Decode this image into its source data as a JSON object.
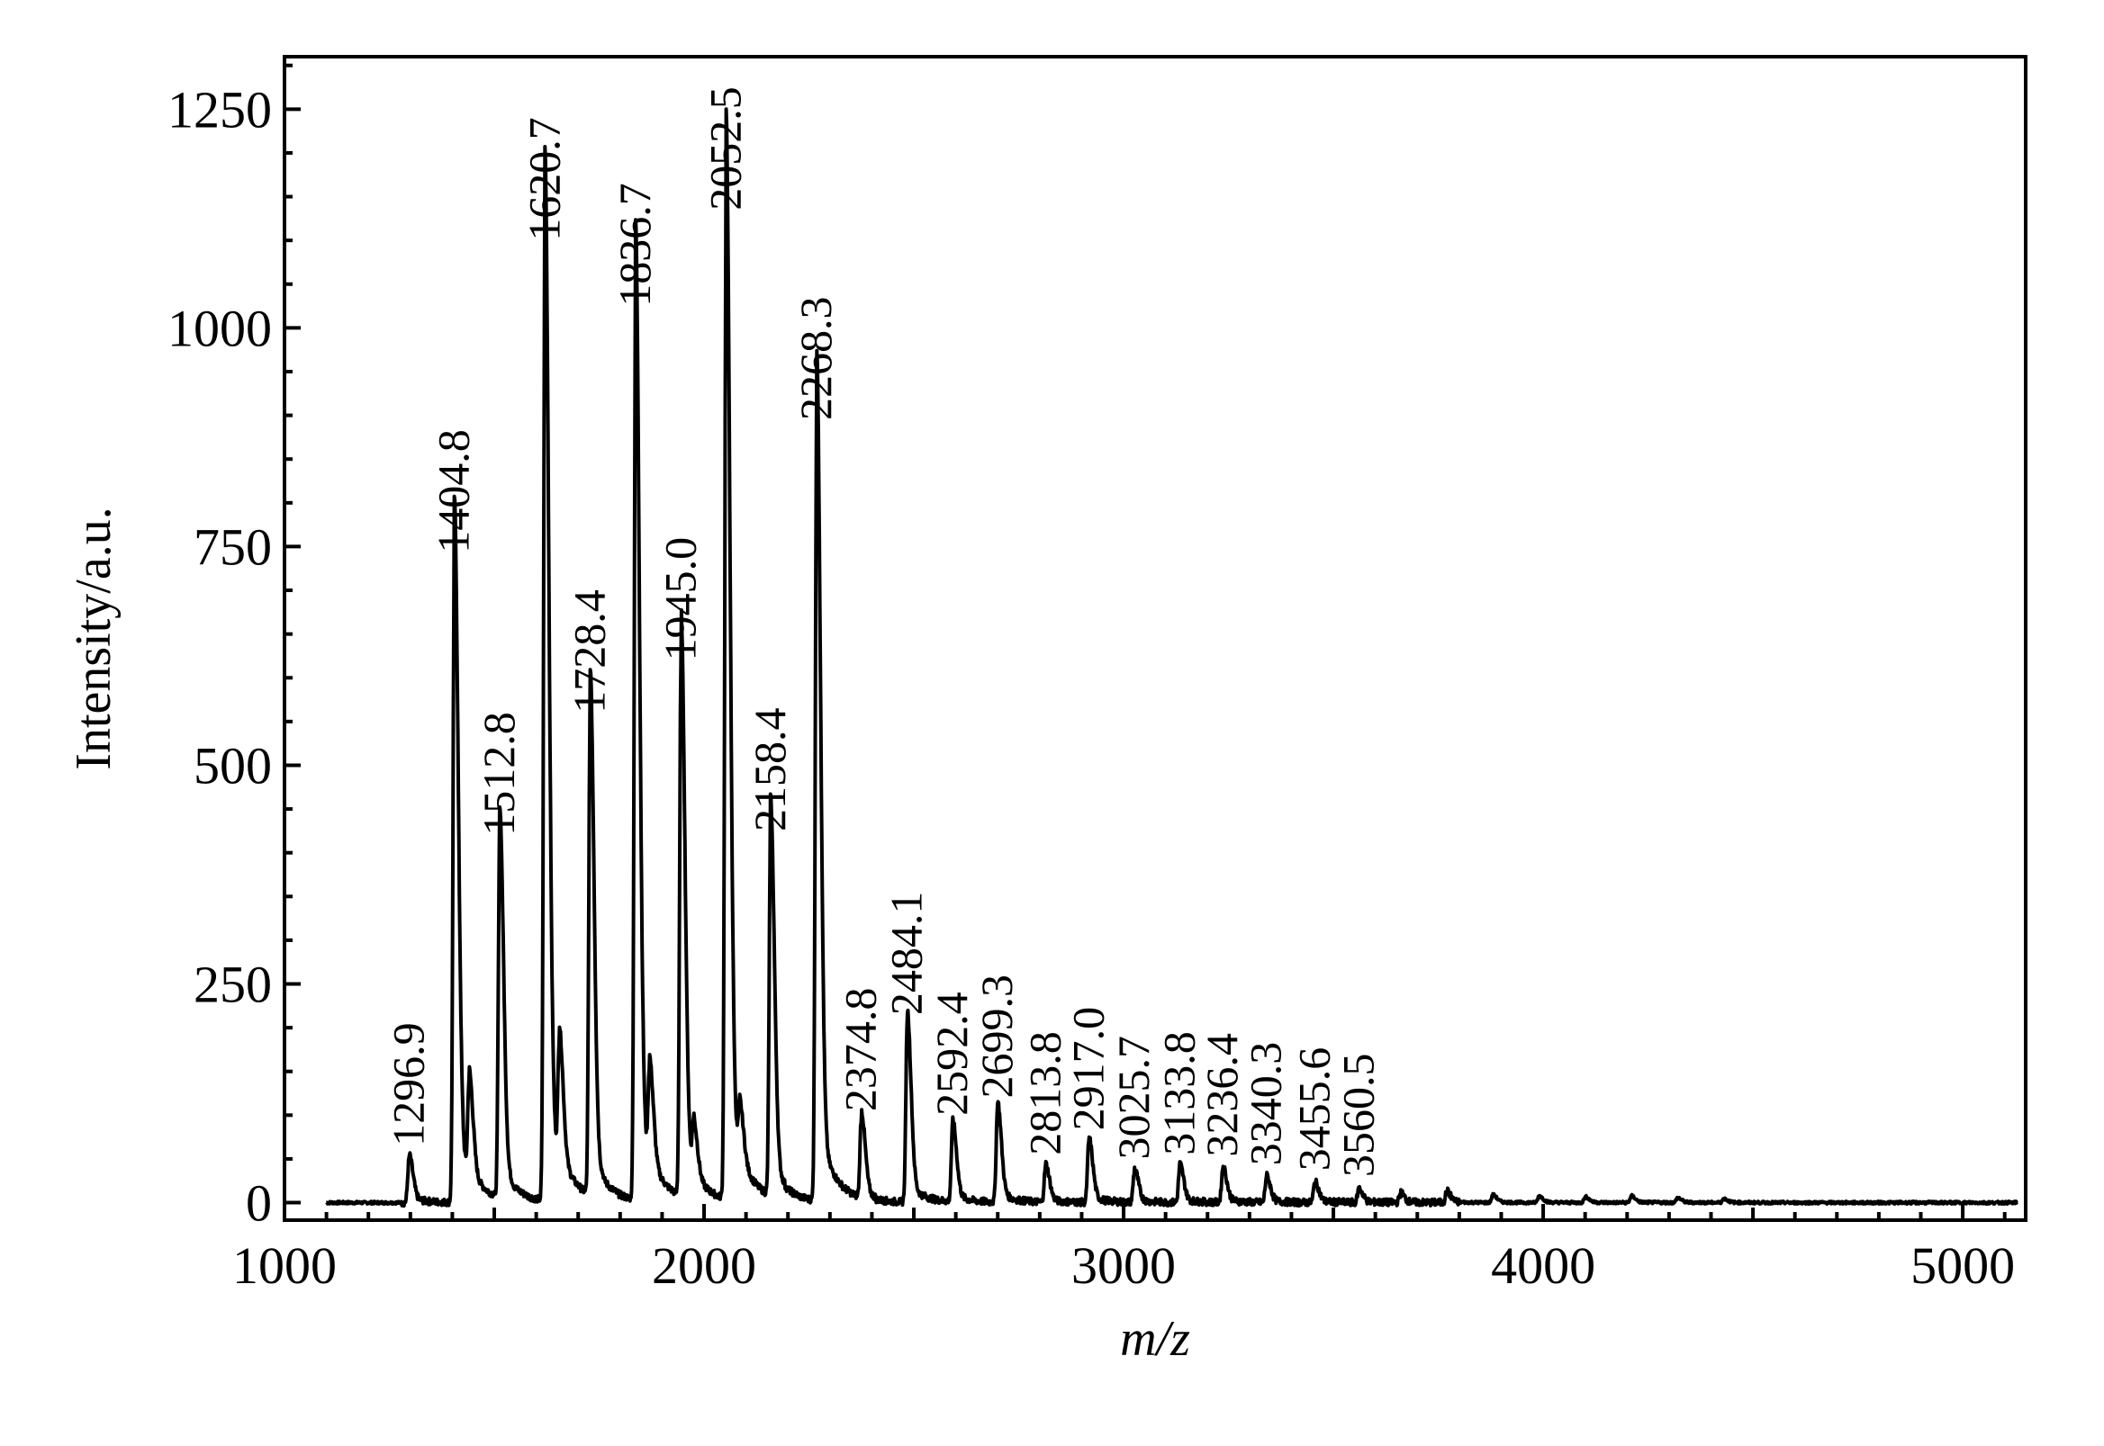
{
  "chart_data": {
    "type": "line",
    "title": "",
    "xlabel": "m/z",
    "ylabel": "Intensity/a.u.",
    "xlim": [
      1000,
      5150
    ],
    "ylim": [
      -20,
      1310
    ],
    "x_ticks": [
      1000,
      2000,
      3000,
      4000,
      5000
    ],
    "y_ticks": [
      0,
      250,
      500,
      750,
      1000,
      1250
    ],
    "legend": "none",
    "grid": false,
    "series_color": "#000000",
    "peaks": [
      {
        "label": "1296.9",
        "x": 1296.9,
        "y": 50
      },
      {
        "label": "1404.8",
        "x": 1404.8,
        "y": 728
      },
      {
        "label": "1512.8",
        "x": 1512.8,
        "y": 405
      },
      {
        "label": "1620.7",
        "x": 1620.7,
        "y": 1085
      },
      {
        "label": "1728.4",
        "x": 1728.4,
        "y": 545
      },
      {
        "label": "1836.7",
        "x": 1836.7,
        "y": 1010
      },
      {
        "label": "1945.0",
        "x": 1945.0,
        "y": 605
      },
      {
        "label": "2052.5",
        "x": 2052.5,
        "y": 1120
      },
      {
        "label": "2158.4",
        "x": 2158.4,
        "y": 410
      },
      {
        "label": "2268.3",
        "x": 2268.3,
        "y": 880
      },
      {
        "label": "2374.8",
        "x": 2374.8,
        "y": 90
      },
      {
        "label": "2484.1",
        "x": 2484.1,
        "y": 200
      },
      {
        "label": "2592.4",
        "x": 2592.4,
        "y": 85
      },
      {
        "label": "2699.3",
        "x": 2699.3,
        "y": 105
      },
      {
        "label": "2813.8",
        "x": 2813.8,
        "y": 40
      },
      {
        "label": "2917.0",
        "x": 2917.0,
        "y": 68
      },
      {
        "label": "3025.7",
        "x": 3025.7,
        "y": 35
      },
      {
        "label": "3133.8",
        "x": 3133.8,
        "y": 40
      },
      {
        "label": "3236.4",
        "x": 3236.4,
        "y": 38
      },
      {
        "label": "3340.3",
        "x": 3340.3,
        "y": 28
      },
      {
        "label": "3455.6",
        "x": 3455.6,
        "y": 22
      },
      {
        "label": "3560.5",
        "x": 3560.5,
        "y": 15
      }
    ],
    "minor_peaks": [
      {
        "x": 1440,
        "y": 110
      },
      {
        "x": 1655,
        "y": 140
      },
      {
        "x": 1870,
        "y": 110
      },
      {
        "x": 1975,
        "y": 60
      },
      {
        "x": 2085,
        "y": 60
      },
      {
        "x": 3660,
        "y": 10
      },
      {
        "x": 3770,
        "y": 12
      },
      {
        "x": 3880,
        "y": 8
      },
      {
        "x": 3990,
        "y": 7
      },
      {
        "x": 4100,
        "y": 6
      },
      {
        "x": 4210,
        "y": 7
      },
      {
        "x": 4320,
        "y": 5
      },
      {
        "x": 4430,
        "y": 4
      }
    ]
  }
}
